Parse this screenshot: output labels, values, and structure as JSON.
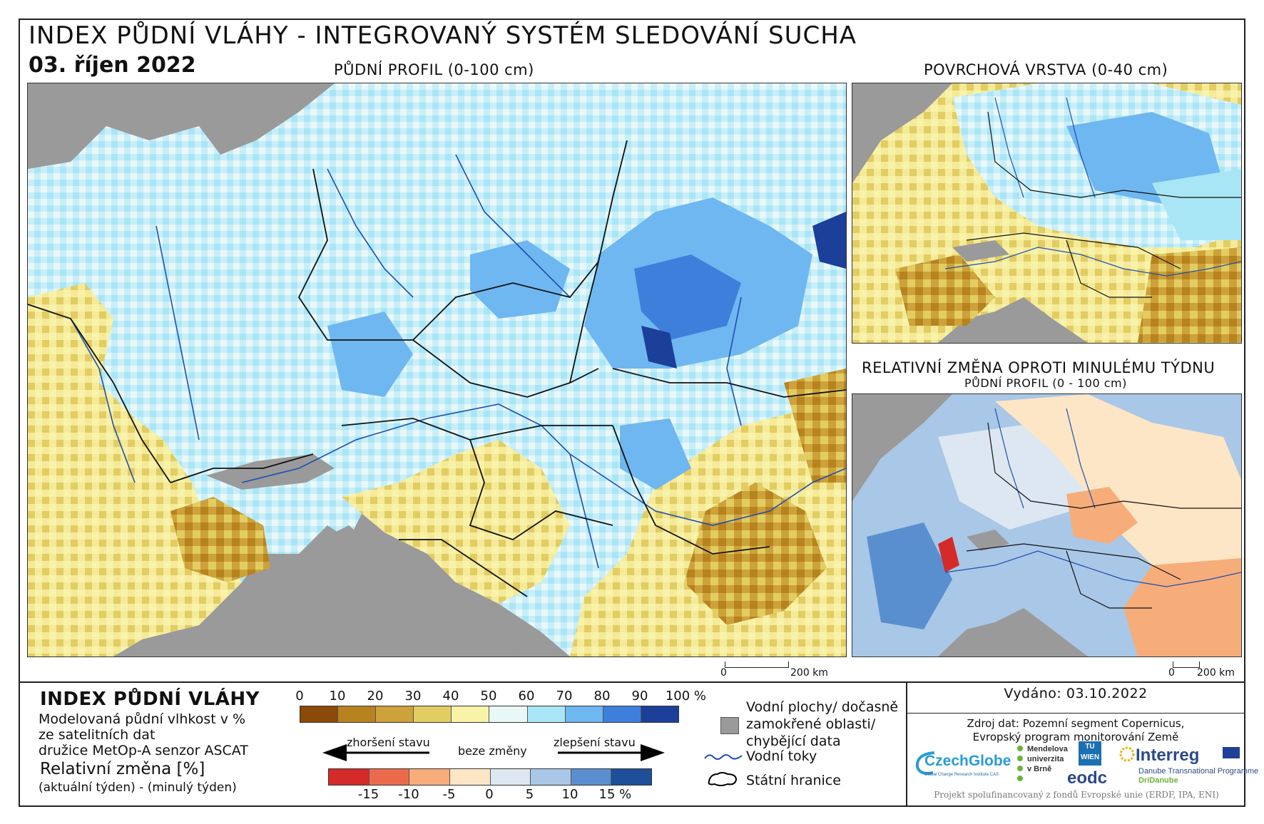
{
  "header": {
    "title": "INDEX PŮDNÍ VLÁHY - INTEGROVANÝ SYSTÉM SLEDOVÁNÍ SUCHA",
    "date": "03. říjen 2022"
  },
  "maps": {
    "main_title": "PŮDNÍ PROFIL (0-100 cm)",
    "top_right_title": "POVRCHOVÁ VRSTVA (0-40 cm)",
    "bottom_right_title": "RELATIVNÍ ZMĚNA OPROTI MINULÉMU TÝDNU",
    "bottom_right_subtitle": "PŮDNÍ PROFIL (0 - 100 cm)",
    "scale_main": {
      "zero": "0",
      "end": "200 km"
    },
    "scale_small": {
      "zero": "0",
      "end": "200 km"
    }
  },
  "legend": {
    "title": "INDEX PŮDNÍ VLÁHY",
    "desc_line1": "Modelovaná půdní vlhkost v %",
    "desc_line2": "ze satelitních dat",
    "desc_line3": "družice MetOp-A senzor ASCAT",
    "rel_title": "Relativní změna [%]",
    "rel_desc": "(aktuální týden) - (minulý týden)",
    "index_ticks": [
      "0",
      "10",
      "20",
      "30",
      "40",
      "50",
      "60",
      "70",
      "80",
      "90",
      "100 %"
    ],
    "index_colors": [
      "#8b4a0a",
      "#b7831f",
      "#cda23a",
      "#e2cd62",
      "#f8f3a8",
      "#e8f8f6",
      "#a9e6f5",
      "#6fb7f0",
      "#3f7fdc",
      "#1c3f9a"
    ],
    "arrow_worse": "zhoršení stavu",
    "arrow_none": "beze změny",
    "arrow_better": "zlepšení stavu",
    "change_ticks": [
      "-15",
      "-10",
      "-5",
      "0",
      "5",
      "10",
      "15 %"
    ],
    "change_colors": [
      "#d42a2a",
      "#ec6a4c",
      "#f6ad7a",
      "#fde6c6",
      "#dde7f1",
      "#a9c7e6",
      "#5a8fcf",
      "#1e4f9a"
    ],
    "water_label": "Vodní plochy/ dočasně zamokřené oblasti/ chybějící data",
    "water_line1": "Vodní plochy/ dočasně",
    "water_line2": "zamokřené oblasti/",
    "water_line3": "chybějící data",
    "rivers_label": "Vodní toky",
    "borders_label": "Státní hranice"
  },
  "info": {
    "issued": "Vydáno: 03.10.2022",
    "source_line1": "Zdroj dat: Pozemní segment Copernicus,",
    "source_line2": "Evropský program monitorování Země",
    "footer": "Projekt spolufinancovaný z fondů Evropské unie (ERDF, IPA, ENI)"
  },
  "logos": {
    "czechglobe": "CzechGlobe",
    "czechglobe_sub": "Global Change Research Institute CAS",
    "mendel_line1": "Mendelova",
    "mendel_line2": "univerzita",
    "mendel_line3": "v Brně",
    "tuwien": "TU WIEN",
    "eodc": "eodc",
    "interreg": "Interreg",
    "interreg_sub1": "Danube Transnational Programme",
    "interreg_sub2": "DriDanube"
  }
}
